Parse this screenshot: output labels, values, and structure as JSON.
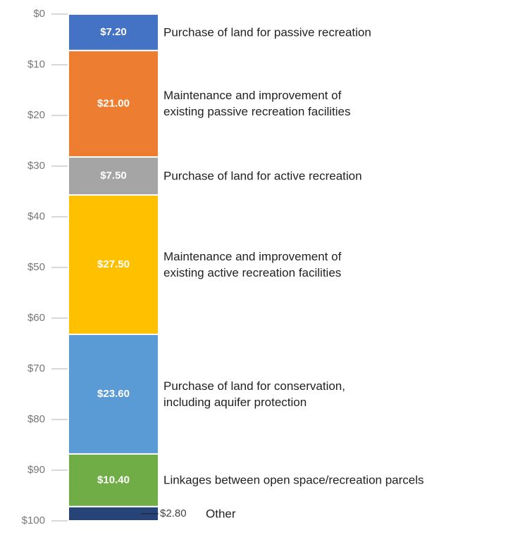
{
  "chart_data": {
    "type": "bar",
    "stacked": true,
    "inverted_y": true,
    "categories": [
      null
    ],
    "ylim": [
      0,
      100
    ],
    "yticks": [
      {
        "value": 0,
        "label": "$0"
      },
      {
        "value": 10,
        "label": "$10"
      },
      {
        "value": 20,
        "label": "$20"
      },
      {
        "value": 30,
        "label": "$30"
      },
      {
        "value": 40,
        "label": "$40"
      },
      {
        "value": 50,
        "label": "$50"
      },
      {
        "value": 60,
        "label": "$60"
      },
      {
        "value": 70,
        "label": "$70"
      },
      {
        "value": 80,
        "label": "$80"
      },
      {
        "value": 90,
        "label": "$90"
      },
      {
        "value": 100,
        "label": "$100"
      }
    ],
    "grid": true,
    "series": [
      {
        "name": "Purchase of land for passive recreation",
        "color": "#4472c4",
        "values": [
          7.2
        ],
        "value_labels": [
          "$7.20"
        ]
      },
      {
        "name": "Maintenance and improvement of\nexisting passive recreation facilities",
        "color": "#ed7d31",
        "values": [
          21.0
        ],
        "value_labels": [
          "$21.00"
        ]
      },
      {
        "name": "Purchase of land for active recreation",
        "color": "#a5a5a5",
        "values": [
          7.5
        ],
        "value_labels": [
          "$7.50"
        ]
      },
      {
        "name": "Maintenance and improvement of\nexisting active recreation facilities",
        "color": "#ffc000",
        "values": [
          27.5
        ],
        "value_labels": [
          "$27.50"
        ]
      },
      {
        "name": "Purchase of land for conservation,\nincluding aquifer protection",
        "color": "#5b9bd5",
        "values": [
          23.6
        ],
        "value_labels": [
          "$23.60"
        ]
      },
      {
        "name": "Linkages between open space/recreation parcels",
        "color": "#70ad47",
        "values": [
          10.4
        ],
        "value_labels": [
          "$10.40"
        ]
      },
      {
        "name": "Other",
        "color": "#264478",
        "values": [
          2.8
        ],
        "value_labels": [
          "$2.80"
        ]
      }
    ]
  }
}
